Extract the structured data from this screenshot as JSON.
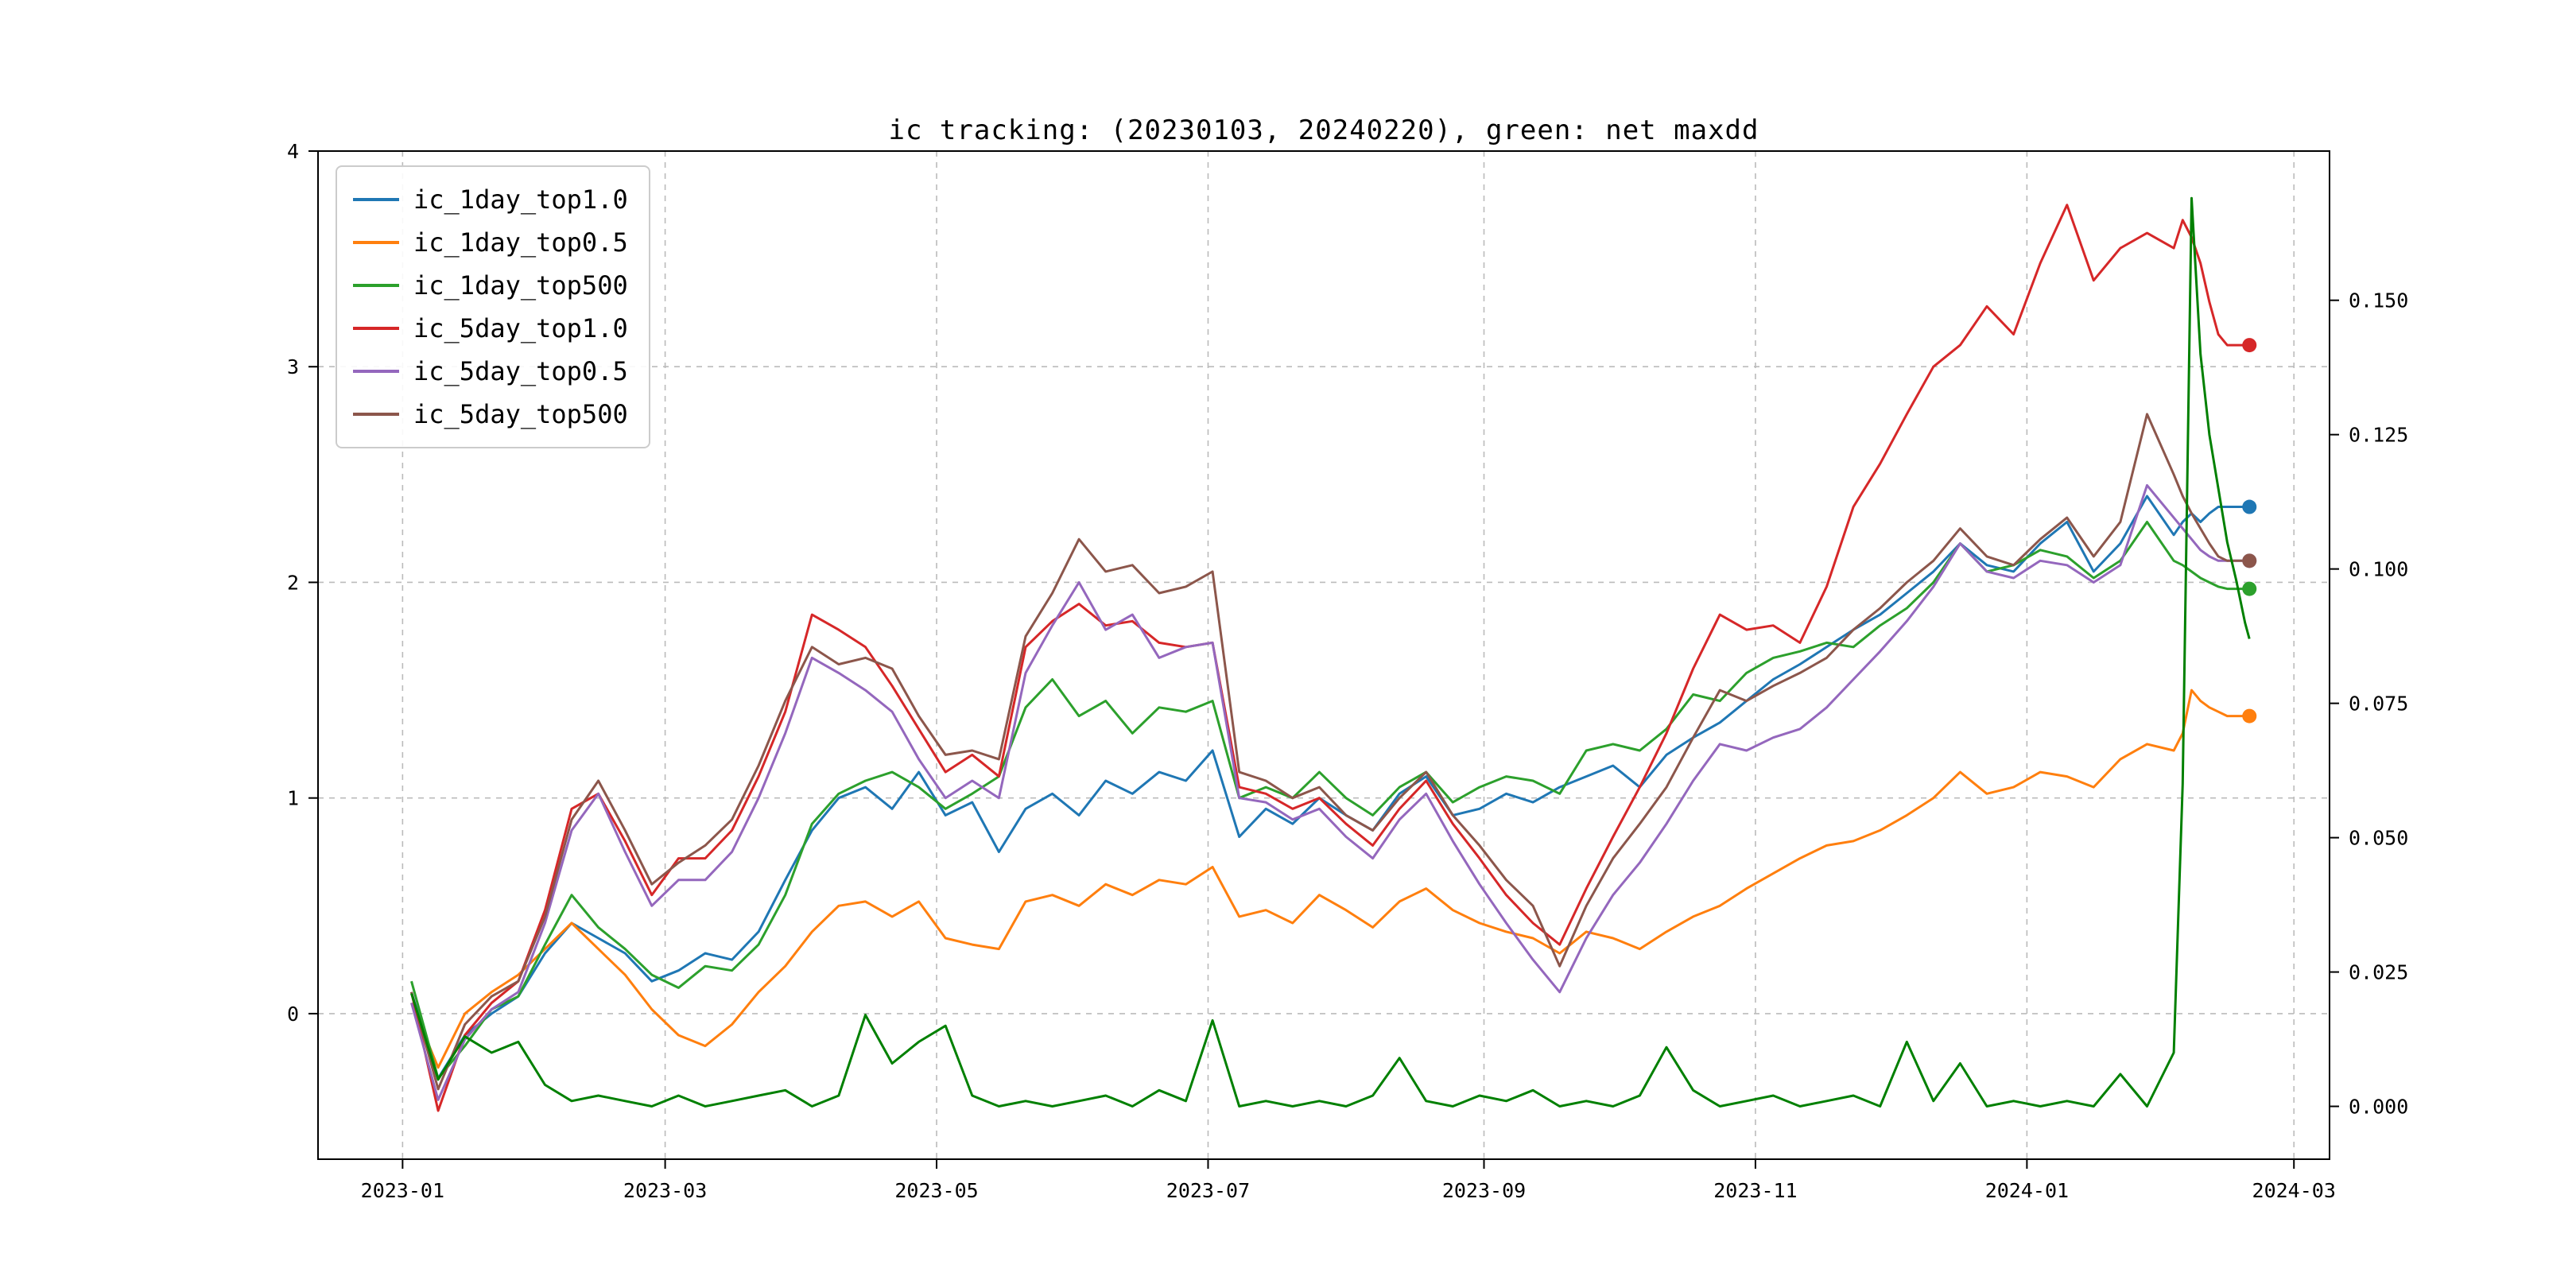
{
  "chart_data": {
    "type": "line",
    "title": "ic tracking: (20230103, 20240220), green: net maxdd",
    "x_unit": "days since 2023-01-01",
    "x": [
      2,
      8,
      14,
      20,
      26,
      32,
      38,
      44,
      50,
      56,
      62,
      68,
      74,
      80,
      86,
      92,
      98,
      104,
      110,
      116,
      122,
      128,
      134,
      140,
      146,
      152,
      158,
      164,
      170,
      176,
      182,
      188,
      194,
      200,
      206,
      212,
      218,
      224,
      230,
      236,
      242,
      248,
      254,
      260,
      266,
      272,
      278,
      284,
      290,
      296,
      302,
      308,
      314,
      320,
      326,
      332,
      338,
      344,
      350,
      356,
      362,
      368,
      374,
      380,
      386,
      392,
      398,
      400,
      402,
      404,
      406,
      408,
      410,
      412,
      414,
      415
    ],
    "series": [
      {
        "name": "ic_1day_top1.0",
        "color": "#1f77b4",
        "axis": "left",
        "in_legend": true,
        "end_marker": true,
        "values": [
          0.1,
          -0.3,
          -0.1,
          0.0,
          0.08,
          0.28,
          0.42,
          0.35,
          0.28,
          0.15,
          0.2,
          0.28,
          0.25,
          0.38,
          0.62,
          0.85,
          1.0,
          1.05,
          0.95,
          1.12,
          0.92,
          0.98,
          0.75,
          0.95,
          1.02,
          0.92,
          1.08,
          1.02,
          1.12,
          1.08,
          1.22,
          0.82,
          0.95,
          0.88,
          1.0,
          0.92,
          0.85,
          1.02,
          1.1,
          0.92,
          0.95,
          1.02,
          0.98,
          1.05,
          1.1,
          1.15,
          1.05,
          1.2,
          1.28,
          1.35,
          1.45,
          1.55,
          1.62,
          1.7,
          1.78,
          1.85,
          1.95,
          2.05,
          2.18,
          2.08,
          2.05,
          2.18,
          2.28,
          2.05,
          2.18,
          2.4,
          2.22,
          2.28,
          2.32,
          2.28,
          2.32,
          2.35,
          2.35,
          2.35,
          2.35,
          2.35
        ]
      },
      {
        "name": "ic_1day_top0.5",
        "color": "#ff7f0e",
        "axis": "left",
        "in_legend": true,
        "end_marker": true,
        "values": [
          0.05,
          -0.25,
          0.0,
          0.1,
          0.18,
          0.3,
          0.42,
          0.3,
          0.18,
          0.02,
          -0.1,
          -0.15,
          -0.05,
          0.1,
          0.22,
          0.38,
          0.5,
          0.52,
          0.45,
          0.52,
          0.35,
          0.32,
          0.3,
          0.52,
          0.55,
          0.5,
          0.6,
          0.55,
          0.62,
          0.6,
          0.68,
          0.45,
          0.48,
          0.42,
          0.55,
          0.48,
          0.4,
          0.52,
          0.58,
          0.48,
          0.42,
          0.38,
          0.35,
          0.28,
          0.38,
          0.35,
          0.3,
          0.38,
          0.45,
          0.5,
          0.58,
          0.65,
          0.72,
          0.78,
          0.8,
          0.85,
          0.92,
          1.0,
          1.12,
          1.02,
          1.05,
          1.12,
          1.1,
          1.05,
          1.18,
          1.25,
          1.22,
          1.3,
          1.5,
          1.45,
          1.42,
          1.4,
          1.38,
          1.38,
          1.38,
          1.38
        ]
      },
      {
        "name": "ic_1day_top500",
        "color": "#2ca02c",
        "axis": "left",
        "in_legend": true,
        "end_marker": true,
        "values": [
          0.15,
          -0.3,
          -0.15,
          0.02,
          0.08,
          0.32,
          0.55,
          0.4,
          0.3,
          0.18,
          0.12,
          0.22,
          0.2,
          0.32,
          0.55,
          0.88,
          1.02,
          1.08,
          1.12,
          1.05,
          0.95,
          1.02,
          1.1,
          1.42,
          1.55,
          1.38,
          1.45,
          1.3,
          1.42,
          1.4,
          1.45,
          1.0,
          1.05,
          1.0,
          1.12,
          1.0,
          0.92,
          1.05,
          1.12,
          0.98,
          1.05,
          1.1,
          1.08,
          1.02,
          1.22,
          1.25,
          1.22,
          1.32,
          1.48,
          1.45,
          1.58,
          1.65,
          1.68,
          1.72,
          1.7,
          1.8,
          1.88,
          2.0,
          2.18,
          2.05,
          2.08,
          2.15,
          2.12,
          2.02,
          2.1,
          2.28,
          2.1,
          2.08,
          2.05,
          2.02,
          2.0,
          1.98,
          1.97,
          1.97,
          1.97,
          1.97
        ]
      },
      {
        "name": "ic_5day_top1.0",
        "color": "#d62728",
        "axis": "left",
        "in_legend": true,
        "end_marker": true,
        "values": [
          0.1,
          -0.45,
          -0.1,
          0.05,
          0.15,
          0.48,
          0.95,
          1.02,
          0.8,
          0.55,
          0.72,
          0.72,
          0.85,
          1.1,
          1.4,
          1.85,
          1.78,
          1.7,
          1.52,
          1.32,
          1.12,
          1.2,
          1.1,
          1.7,
          1.82,
          1.9,
          1.8,
          1.82,
          1.72,
          1.7,
          1.72,
          1.05,
          1.02,
          0.95,
          1.0,
          0.88,
          0.78,
          0.95,
          1.08,
          0.88,
          0.72,
          0.55,
          0.42,
          0.32,
          0.58,
          0.82,
          1.05,
          1.3,
          1.6,
          1.85,
          1.78,
          1.8,
          1.72,
          1.98,
          2.35,
          2.55,
          2.78,
          3.0,
          3.1,
          3.28,
          3.15,
          3.48,
          3.75,
          3.4,
          3.55,
          3.62,
          3.55,
          3.68,
          3.6,
          3.48,
          3.3,
          3.15,
          3.1,
          3.1,
          3.1,
          3.1
        ]
      },
      {
        "name": "ic_5day_top0.5",
        "color": "#9467bd",
        "axis": "left",
        "in_legend": true,
        "end_marker": true,
        "values": [
          0.05,
          -0.4,
          -0.12,
          0.02,
          0.1,
          0.42,
          0.85,
          1.02,
          0.75,
          0.5,
          0.62,
          0.62,
          0.75,
          1.0,
          1.3,
          1.65,
          1.58,
          1.5,
          1.4,
          1.18,
          1.0,
          1.08,
          1.0,
          1.58,
          1.8,
          2.0,
          1.78,
          1.85,
          1.65,
          1.7,
          1.72,
          1.0,
          0.98,
          0.9,
          0.95,
          0.82,
          0.72,
          0.9,
          1.02,
          0.8,
          0.6,
          0.42,
          0.25,
          0.1,
          0.35,
          0.55,
          0.7,
          0.88,
          1.08,
          1.25,
          1.22,
          1.28,
          1.32,
          1.42,
          1.55,
          1.68,
          1.82,
          1.98,
          2.18,
          2.05,
          2.02,
          2.1,
          2.08,
          2.0,
          2.08,
          2.45,
          2.3,
          2.25,
          2.2,
          2.15,
          2.12,
          2.1,
          2.1,
          2.1,
          2.1,
          2.1
        ]
      },
      {
        "name": "ic_5day_top500",
        "color": "#8c564b",
        "axis": "left",
        "in_legend": true,
        "end_marker": true,
        "values": [
          0.1,
          -0.35,
          -0.05,
          0.08,
          0.15,
          0.45,
          0.9,
          1.08,
          0.85,
          0.6,
          0.7,
          0.78,
          0.9,
          1.15,
          1.45,
          1.7,
          1.62,
          1.65,
          1.6,
          1.38,
          1.2,
          1.22,
          1.18,
          1.75,
          1.95,
          2.2,
          2.05,
          2.08,
          1.95,
          1.98,
          2.05,
          1.12,
          1.08,
          1.0,
          1.05,
          0.92,
          0.85,
          1.0,
          1.12,
          0.92,
          0.78,
          0.62,
          0.5,
          0.22,
          0.5,
          0.72,
          0.88,
          1.05,
          1.28,
          1.5,
          1.45,
          1.52,
          1.58,
          1.65,
          1.78,
          1.88,
          2.0,
          2.1,
          2.25,
          2.12,
          2.08,
          2.2,
          2.3,
          2.12,
          2.28,
          2.78,
          2.5,
          2.4,
          2.32,
          2.25,
          2.18,
          2.12,
          2.1,
          2.1,
          2.1,
          2.1
        ]
      },
      {
        "name": "net_maxdd",
        "color": "#008000",
        "axis": "right",
        "in_legend": false,
        "end_marker": false,
        "values": [
          0.021,
          0.005,
          0.013,
          0.01,
          0.012,
          0.004,
          0.001,
          0.002,
          0.001,
          0.0,
          0.002,
          0.0,
          0.001,
          0.002,
          0.003,
          0.0,
          0.002,
          0.017,
          0.008,
          0.012,
          0.015,
          0.002,
          0.0,
          0.001,
          0.0,
          0.001,
          0.002,
          0.0,
          0.003,
          0.001,
          0.016,
          0.0,
          0.001,
          0.0,
          0.001,
          0.0,
          0.002,
          0.009,
          0.001,
          0.0,
          0.002,
          0.001,
          0.003,
          0.0,
          0.001,
          0.0,
          0.002,
          0.011,
          0.003,
          0.0,
          0.001,
          0.002,
          0.0,
          0.001,
          0.002,
          0.0,
          0.012,
          0.001,
          0.008,
          0.0,
          0.001,
          0.0,
          0.001,
          0.0,
          0.006,
          0.0,
          0.01,
          0.06,
          0.169,
          0.14,
          0.125,
          0.115,
          0.105,
          0.098,
          0.09,
          0.087
        ]
      }
    ],
    "left_axis": {
      "ticks": [
        0,
        1,
        2,
        3,
        4
      ],
      "ylim": [
        -0.675,
        4.0
      ]
    },
    "right_axis": {
      "ticks": [
        0.0,
        0.025,
        0.05,
        0.075,
        0.1,
        0.125,
        0.15
      ],
      "tick_format": 3,
      "to_left_scale": 24.92,
      "to_left_offset": -0.43
    },
    "x_ticks": [
      {
        "label": "2023-01",
        "day": 0
      },
      {
        "label": "2023-03",
        "day": 59
      },
      {
        "label": "2023-05",
        "day": 120
      },
      {
        "label": "2023-07",
        "day": 181
      },
      {
        "label": "2023-09",
        "day": 243
      },
      {
        "label": "2023-11",
        "day": 304
      },
      {
        "label": "2024-01",
        "day": 365
      },
      {
        "label": "2024-03",
        "day": 425
      }
    ],
    "xlim_days": [
      -19,
      433
    ],
    "grid": true,
    "legend_position": "upper-left"
  }
}
